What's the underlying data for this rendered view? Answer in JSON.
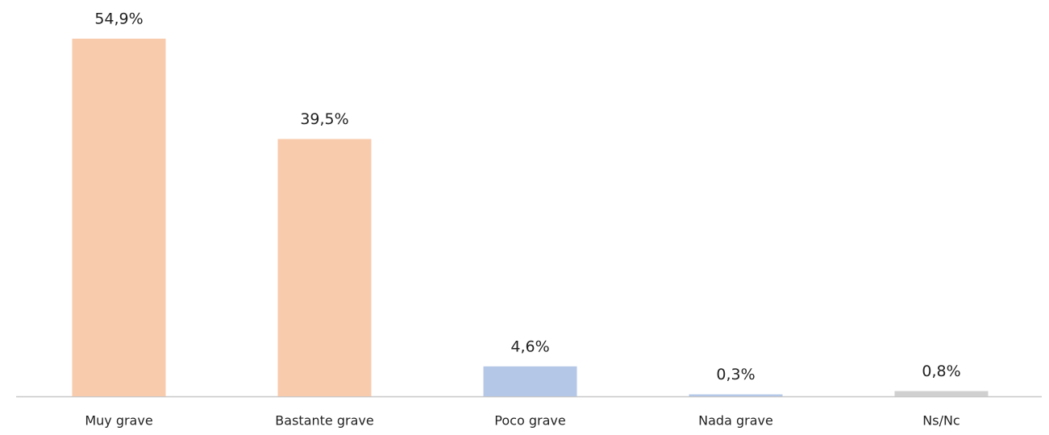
{
  "chart_data": {
    "type": "bar",
    "categories": [
      "Muy grave",
      "Bastante grave",
      "Poco grave",
      "Nada grave",
      "Ns/Nc"
    ],
    "values": [
      54.9,
      39.5,
      4.6,
      0.3,
      0.8
    ],
    "value_labels": [
      "54,9%",
      "39,5%",
      "4,6%",
      "0,3%",
      "0,8%"
    ],
    "colors": [
      "#f8cbad",
      "#f8cbad",
      "#b4c7e7",
      "#b4c7e7",
      "#d0d0d0"
    ]
  }
}
